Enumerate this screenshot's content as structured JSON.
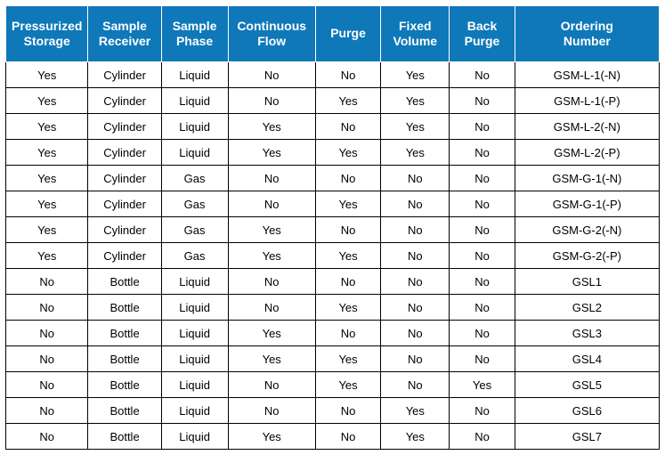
{
  "table": {
    "header_bg": "#0f78b9",
    "header_fg": "#ffffff",
    "cell_border": "#000000",
    "header_fontsize": 14,
    "cell_fontsize": 13,
    "columns": [
      {
        "label_line1": "Pressurized",
        "label_line2": "Storage",
        "width_pct": 12.6,
        "align": "center"
      },
      {
        "label_line1": "Sample",
        "label_line2": "Receiver",
        "width_pct": 11.2,
        "align": "center"
      },
      {
        "label_line1": "Sample",
        "label_line2": "Phase",
        "width_pct": 10.2,
        "align": "center"
      },
      {
        "label_line1": "Continuous",
        "label_line2": "Flow",
        "width_pct": 13.4,
        "align": "center"
      },
      {
        "label_line1": "Purge",
        "label_line2": "",
        "width_pct": 10.0,
        "align": "center"
      },
      {
        "label_line1": "Fixed",
        "label_line2": "Volume",
        "width_pct": 10.5,
        "align": "center"
      },
      {
        "label_line1": "Back",
        "label_line2": "Purge",
        "width_pct": 10.0,
        "align": "center"
      },
      {
        "label_line1": "Ordering",
        "label_line2": "Number",
        "width_pct": 22.1,
        "align": "center"
      }
    ],
    "rows": [
      [
        "Yes",
        "Cylinder",
        "Liquid",
        "No",
        "No",
        "Yes",
        "No",
        "GSM-L-1(-N)"
      ],
      [
        "Yes",
        "Cylinder",
        "Liquid",
        "No",
        "Yes",
        "Yes",
        "No",
        "GSM-L-1(-P)"
      ],
      [
        "Yes",
        "Cylinder",
        "Liquid",
        "Yes",
        "No",
        "Yes",
        "No",
        "GSM-L-2(-N)"
      ],
      [
        "Yes",
        "Cylinder",
        "Liquid",
        "Yes",
        "Yes",
        "Yes",
        "No",
        "GSM-L-2(-P)"
      ],
      [
        "Yes",
        "Cylinder",
        "Gas",
        "No",
        "No",
        "No",
        "No",
        "GSM-G-1(-N)"
      ],
      [
        "Yes",
        "Cylinder",
        "Gas",
        "No",
        "Yes",
        "No",
        "No",
        "GSM-G-1(-P)"
      ],
      [
        "Yes",
        "Cylinder",
        "Gas",
        "Yes",
        "No",
        "No",
        "No",
        "GSM-G-2(-N)"
      ],
      [
        "Yes",
        "Cylinder",
        "Gas",
        "Yes",
        "Yes",
        "No",
        "No",
        "GSM-G-2(-P)"
      ],
      [
        "No",
        "Bottle",
        "Liquid",
        "No",
        "No",
        "No",
        "No",
        "GSL1"
      ],
      [
        "No",
        "Bottle",
        "Liquid",
        "No",
        "Yes",
        "No",
        "No",
        "GSL2"
      ],
      [
        "No",
        "Bottle",
        "Liquid",
        "Yes",
        "No",
        "No",
        "No",
        "GSL3"
      ],
      [
        "No",
        "Bottle",
        "Liquid",
        "Yes",
        "Yes",
        "No",
        "No",
        "GSL4"
      ],
      [
        "No",
        "Bottle",
        "Liquid",
        "No",
        "Yes",
        "No",
        "Yes",
        "GSL5"
      ],
      [
        "No",
        "Bottle",
        "Liquid",
        "No",
        "No",
        "Yes",
        "No",
        "GSL6"
      ],
      [
        "No",
        "Bottle",
        "Liquid",
        "Yes",
        "No",
        "Yes",
        "No",
        "GSL7"
      ]
    ]
  }
}
